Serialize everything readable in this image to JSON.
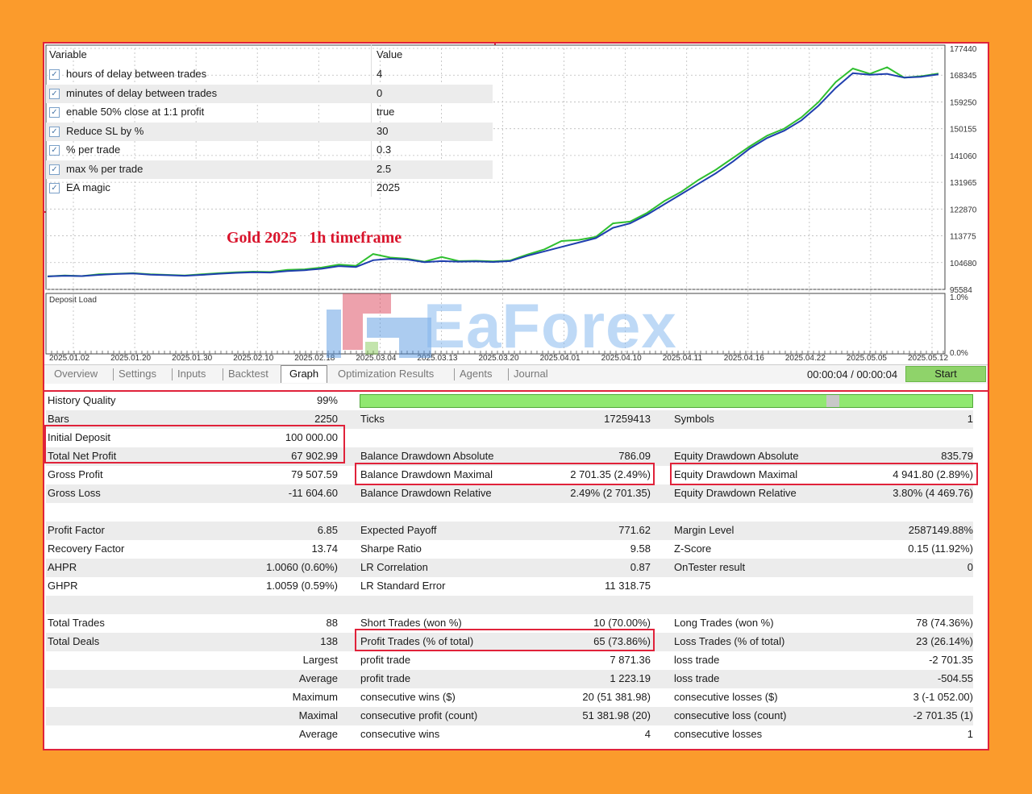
{
  "inputs": {
    "col_variable": "Variable",
    "col_value": "Value",
    "rows": [
      {
        "name": "hours of delay between trades",
        "value": "4"
      },
      {
        "name": "minutes of delay between trades",
        "value": "0"
      },
      {
        "name": "enable 50% close at 1:1 profit",
        "value": "true"
      },
      {
        "name": "Reduce SL by %",
        "value": "30"
      },
      {
        "name": "% per trade",
        "value": "0.3"
      },
      {
        "name": "max % per trade",
        "value": "2.5"
      },
      {
        "name": "EA magic",
        "value": "2025"
      }
    ]
  },
  "caption": "Gold 2025   1h timeframe",
  "watermark": "EaForex",
  "deposit_load_label": "Deposit Load",
  "chart_data": {
    "type": "line",
    "yticks": [
      "177440",
      "168345",
      "159250",
      "150155",
      "141060",
      "131965",
      "122870",
      "113775",
      "104680",
      "95584"
    ],
    "ylim": [
      95584,
      177440
    ],
    "deposit_ticks": [
      "1.0%",
      "0.0%"
    ],
    "xticks": [
      "2025.01.02",
      "2025.01.20",
      "2025.01.30",
      "2025.02.10",
      "2025.02.18",
      "2025.03.04",
      "2025.03.13",
      "2025.03.20",
      "2025.04.01",
      "2025.04.10",
      "2025.04.11",
      "2025.04.16",
      "2025.04.22",
      "2025.05.05",
      "2025.05.12"
    ],
    "series": [
      {
        "color": "#1f3fae",
        "values": [
          100000,
          100200,
          100100,
          100500,
          100800,
          101000,
          100600,
          100400,
          100200,
          100500,
          100900,
          101200,
          101400,
          101300,
          101800,
          102100,
          102600,
          103500,
          103200,
          105500,
          106000,
          105700,
          104800,
          105200,
          105000,
          105100,
          104900,
          105200,
          107000,
          108500,
          110000,
          111500,
          113000,
          116500,
          118000,
          121000,
          124500,
          128000,
          131500,
          135000,
          139000,
          143500,
          147000,
          149500,
          153000,
          158000,
          164000,
          169000,
          168500,
          168800,
          167500,
          167800,
          168600
        ]
      },
      {
        "color": "#2fbf2f",
        "values": [
          100000,
          100300,
          100100,
          100700,
          100900,
          101100,
          100700,
          100500,
          100300,
          100700,
          101100,
          101400,
          101600,
          101500,
          102200,
          102400,
          103000,
          104000,
          103600,
          107600,
          106400,
          106000,
          105000,
          106600,
          105200,
          105300,
          105100,
          105400,
          107400,
          109200,
          112000,
          112400,
          113400,
          118000,
          118600,
          121600,
          125600,
          128800,
          132800,
          136200,
          140200,
          144200,
          147800,
          150200,
          154000,
          159200,
          166000,
          170600,
          168800,
          171000,
          167500,
          168000,
          168900
        ]
      }
    ]
  },
  "tabs": [
    {
      "label": "Overview"
    },
    {
      "label": "Settings"
    },
    {
      "label": "Inputs"
    },
    {
      "label": "Backtest"
    },
    {
      "label": "Graph"
    },
    {
      "label": "Optimization Results"
    },
    {
      "label": "Agents"
    },
    {
      "label": "Journal"
    }
  ],
  "timer": "00:00:04 / 00:00:04",
  "start_label": "Start",
  "report": {
    "r0": {
      "l1": "History Quality",
      "v1": "99%"
    },
    "r1": {
      "l1": "Bars",
      "v1": "2250",
      "l2": "Ticks",
      "v2": "17259413",
      "l3": "Symbols",
      "v3": "1"
    },
    "r2": {
      "l1": "Initial Deposit",
      "v1": "100 000.00"
    },
    "r3": {
      "l1": "Total Net Profit",
      "v1": "67 902.99",
      "l2": "Balance Drawdown Absolute",
      "v2": "786.09",
      "l3": "Equity Drawdown Absolute",
      "v3": "835.79"
    },
    "r4": {
      "l1": "Gross Profit",
      "v1": "79 507.59",
      "l2": "Balance Drawdown Maximal",
      "v2": "2 701.35 (2.49%)",
      "l3": "Equity Drawdown Maximal",
      "v3": "4 941.80 (2.89%)"
    },
    "r5": {
      "l1": "Gross Loss",
      "v1": "-11 604.60",
      "l2": "Balance Drawdown Relative",
      "v2": "2.49% (2 701.35)",
      "l3": "Equity Drawdown Relative",
      "v3": "3.80% (4 469.76)"
    },
    "r7": {
      "l1": "Profit Factor",
      "v1": "6.85",
      "l2": "Expected Payoff",
      "v2": "771.62",
      "l3": "Margin Level",
      "v3": "2587149.88%"
    },
    "r8": {
      "l1": "Recovery Factor",
      "v1": "13.74",
      "l2": "Sharpe Ratio",
      "v2": "9.58",
      "l3": "Z-Score",
      "v3": "0.15 (11.92%)"
    },
    "r9": {
      "l1": "AHPR",
      "v1": "1.0060 (0.60%)",
      "l2": "LR Correlation",
      "v2": "0.87",
      "l3": "OnTester result",
      "v3": "0"
    },
    "r10": {
      "l1": "GHPR",
      "v1": "1.0059 (0.59%)",
      "l2": "LR Standard Error",
      "v2": "11 318.75"
    },
    "r12": {
      "l1": "Total Trades",
      "v1": "88",
      "l2": "Short Trades (won %)",
      "v2": "10 (70.00%)",
      "l3": "Long Trades (won %)",
      "v3": "78 (74.36%)"
    },
    "r13": {
      "l1": "Total Deals",
      "v1": "138",
      "l2": "Profit Trades (% of total)",
      "v2": "65 (73.86%)",
      "l3": "Loss Trades (% of total)",
      "v3": "23 (26.14%)"
    },
    "r14": {
      "v1": "Largest",
      "l2": "profit trade",
      "v2": "7 871.36",
      "l3": "loss trade",
      "v3": "-2 701.35"
    },
    "r15": {
      "v1": "Average",
      "l2": "profit trade",
      "v2": "1 223.19",
      "l3": "loss trade",
      "v3": "-504.55"
    },
    "r16": {
      "v1": "Maximum",
      "l2": "consecutive wins ($)",
      "v2": "20 (51 381.98)",
      "l3": "consecutive losses ($)",
      "v3": "3 (-1 052.00)"
    },
    "r17": {
      "v1": "Maximal",
      "l2": "consecutive profit (count)",
      "v2": "51 381.98 (20)",
      "l3": "consecutive loss (count)",
      "v3": "-2 701.35 (1)"
    },
    "r18": {
      "v1": "Average",
      "l2": "consecutive wins",
      "v2": "4",
      "l3": "consecutive losses",
      "v3": "1"
    }
  }
}
